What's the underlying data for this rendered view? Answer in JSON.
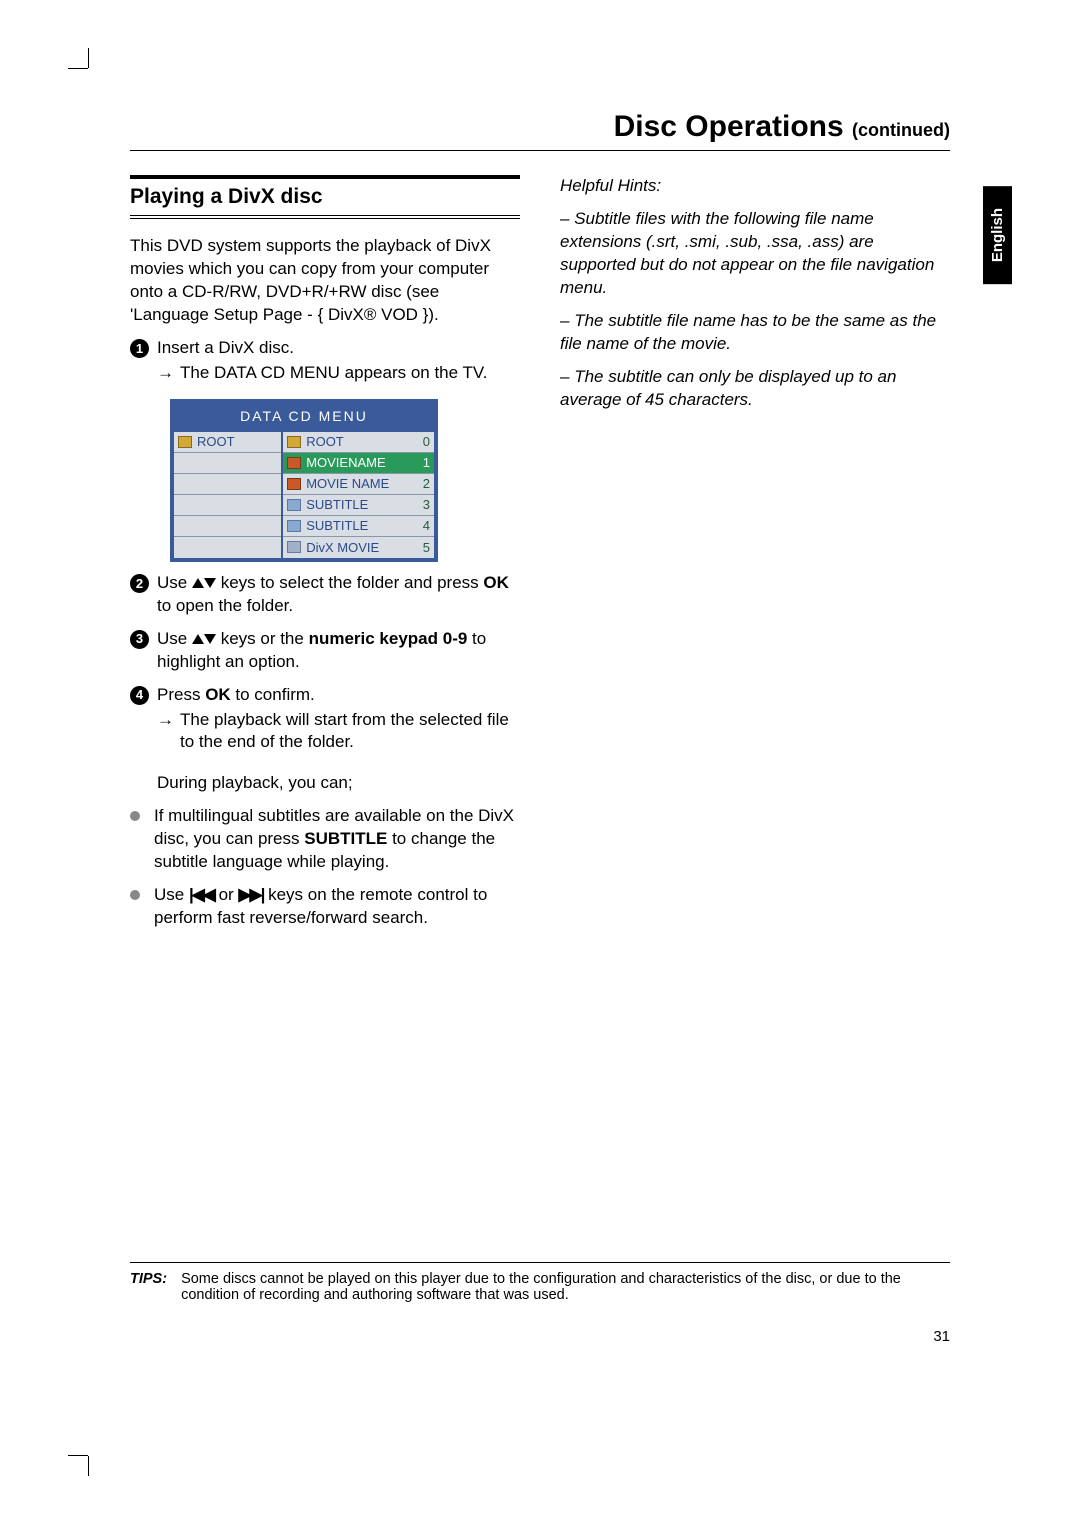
{
  "header": {
    "title": "Disc Operations",
    "continued": "(continued)"
  },
  "language_tab": "English",
  "left": {
    "heading": "Playing a DivX disc",
    "intro": "This DVD system supports the playback of DivX movies which you can copy from your computer onto a CD-R/RW, DVD+R/+RW disc (see 'Language Setup Page - { DivX® VOD }).",
    "step1_text": "Insert a DivX disc.",
    "step1_sub": "The DATA CD MENU appears on the TV.",
    "menu_title": "DATA  CD  MENU",
    "menu_left_rows": [
      {
        "icon": "folder",
        "label": "ROOT"
      },
      {},
      {},
      {},
      {},
      {}
    ],
    "menu_right_rows": [
      {
        "icon": "folder",
        "label": "ROOT",
        "num": "0"
      },
      {
        "icon": "mv",
        "label": "MOVIENAME",
        "num": "1",
        "sel": true
      },
      {
        "icon": "mv",
        "label": "MOVIE NAME",
        "num": "2"
      },
      {
        "icon": "sb",
        "label": "SUBTITLE",
        "num": "3"
      },
      {
        "icon": "sb",
        "label": "SUBTITLE",
        "num": "4"
      },
      {
        "icon": "dx",
        "label": "DivX MOVIE",
        "num": "5"
      }
    ],
    "step2_a": "Use ",
    "step2_b": " keys to select the folder and press ",
    "step2_ok": "OK",
    "step2_c": " to open the folder.",
    "step3_a": "Use ",
    "step3_b": " keys or the ",
    "step3_bold": "numeric keypad 0-9",
    "step3_c": " to highlight an option.",
    "step4_a": "Press ",
    "step4_ok": "OK",
    "step4_b": " to confirm.",
    "step4_sub": "The playback will start from the selected file to the end of the folder.",
    "during": "During playback, you can;",
    "bullet1_a": "If multilingual subtitles are available on the DivX disc, you can press ",
    "bullet1_bold": "SUBTITLE",
    "bullet1_b": " to change the subtitle language while playing.",
    "bullet2_a": "Use ",
    "bullet2_b": " or ",
    "bullet2_c": " keys on the remote control to perform fast reverse/forward search."
  },
  "right": {
    "hints_label": "Helpful Hints:",
    "h1": "Subtitle files with the following file name extensions (.srt, .smi, .sub, .ssa, .ass) are supported but do not appear on the file navigation menu.",
    "h2": "The subtitle file name has to be the same as the file name of the movie.",
    "h3": "The subtitle can only be displayed up to an average of 45 characters."
  },
  "tips": {
    "label": "TIPS:",
    "text": "Some discs cannot be played on this player due to the configuration and characteristics of the disc, or due to the condition of recording and authoring software that was used."
  },
  "page_number": "31"
}
